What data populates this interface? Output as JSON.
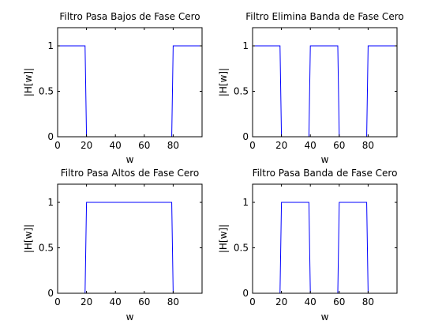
{
  "figure": {
    "background": "#ffffff"
  },
  "chart_data": [
    {
      "type": "line",
      "title": "Filtro Pasa Bajos de Fase Cero",
      "xlabel": "w",
      "ylabel": "|H[w]|",
      "xlim": [
        0,
        100
      ],
      "ylim": [
        0,
        1.2
      ],
      "xticks": [
        "0",
        "20",
        "40",
        "60",
        "80"
      ],
      "yticks": [
        "0",
        "0.5",
        "1"
      ],
      "xtick_values": [
        0,
        20,
        40,
        60,
        80
      ],
      "ytick_values": [
        0,
        0.5,
        1
      ],
      "grid": false,
      "series": [
        {
          "color": "#0000ff",
          "x": [
            0,
            19,
            20,
            79,
            80,
            100
          ],
          "y": [
            1,
            1,
            0,
            0,
            1,
            1
          ]
        }
      ]
    },
    {
      "type": "line",
      "title": "Filtro Elimina Banda de Fase Cero",
      "xlabel": "w",
      "ylabel": "|H[w]|",
      "xlim": [
        0,
        100
      ],
      "ylim": [
        0,
        1.2
      ],
      "xticks": [
        "0",
        "20",
        "40",
        "60",
        "80"
      ],
      "yticks": [
        "0",
        "0.5",
        "1"
      ],
      "xtick_values": [
        0,
        20,
        40,
        60,
        80
      ],
      "ytick_values": [
        0,
        0.5,
        1
      ],
      "grid": false,
      "series": [
        {
          "color": "#0000ff",
          "x": [
            0,
            19,
            20,
            39,
            40,
            59,
            60,
            79,
            80,
            100
          ],
          "y": [
            1,
            1,
            0,
            0,
            1,
            1,
            0,
            0,
            1,
            1
          ]
        }
      ]
    },
    {
      "type": "line",
      "title": "Filtro Pasa Altos de Fase Cero",
      "xlabel": "w",
      "ylabel": "|H[w]|",
      "xlim": [
        0,
        100
      ],
      "ylim": [
        0,
        1.2
      ],
      "xticks": [
        "0",
        "20",
        "40",
        "60",
        "80"
      ],
      "yticks": [
        "0",
        "0.5",
        "1"
      ],
      "xtick_values": [
        0,
        20,
        40,
        60,
        80
      ],
      "ytick_values": [
        0,
        0.5,
        1
      ],
      "grid": false,
      "series": [
        {
          "color": "#0000ff",
          "x": [
            19,
            20,
            79,
            80
          ],
          "y": [
            0,
            1,
            1,
            0
          ]
        }
      ]
    },
    {
      "type": "line",
      "title": "Filtro Pasa Banda de Fase Cero",
      "xlabel": "w",
      "ylabel": "|H[w]|",
      "xlim": [
        0,
        100
      ],
      "ylim": [
        0,
        1.2
      ],
      "xticks": [
        "0",
        "20",
        "40",
        "60",
        "80"
      ],
      "yticks": [
        "0",
        "0.5",
        "1"
      ],
      "xtick_values": [
        0,
        20,
        40,
        60,
        80
      ],
      "ytick_values": [
        0,
        0.5,
        1
      ],
      "grid": false,
      "series": [
        {
          "color": "#0000ff",
          "x": [
            19,
            20,
            39,
            40,
            59,
            60,
            79,
            80
          ],
          "y": [
            0,
            1,
            1,
            0,
            0,
            1,
            1,
            0
          ]
        }
      ]
    }
  ]
}
